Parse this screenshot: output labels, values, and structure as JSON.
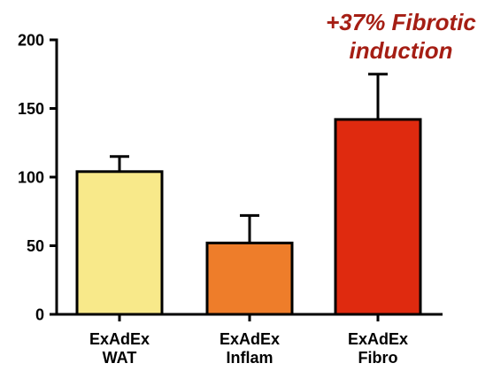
{
  "chart_data": {
    "type": "bar",
    "categories": [
      [
        "ExAdEx",
        "WAT"
      ],
      [
        "ExAdEx",
        "Inflam"
      ],
      [
        "ExAdEx",
        "Fibro"
      ]
    ],
    "values": [
      104,
      52,
      142
    ],
    "errors": [
      11,
      20,
      33
    ],
    "colors": [
      "#f8e98a",
      "#ee7d2a",
      "#df2a0f"
    ],
    "ylim": [
      0,
      200
    ],
    "yticks": [
      0,
      50,
      100,
      150,
      200
    ],
    "xlabel": "",
    "ylabel": "",
    "title": "",
    "annotation": {
      "lines": [
        "+37% Fibrotic",
        "induction"
      ],
      "color": "#a51e14"
    },
    "grid": false,
    "legend": "none"
  }
}
